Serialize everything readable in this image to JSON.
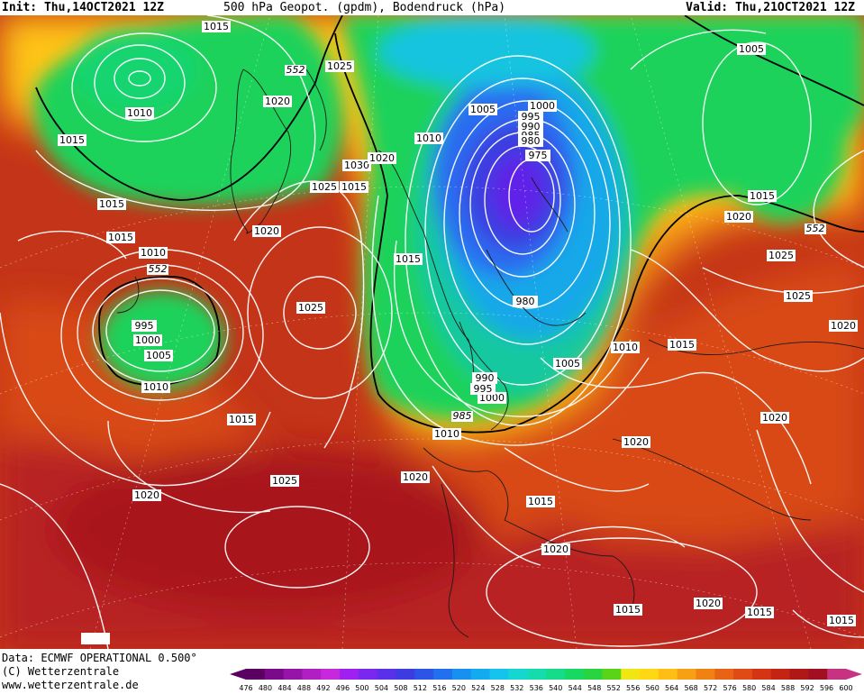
{
  "header": {
    "init": "Init: Thu,14OCT2021 12Z",
    "title": "500 hPa Geopot. (gpdm), Bodendruck (hPa)",
    "valid": "Valid: Thu,21OCT2021 12Z"
  },
  "footer": {
    "data_line": "Data: ECMWF OPERATIONAL 0.500°",
    "copyright": "(C) Wetterzentrale",
    "website": "www.wetterzentrale.de"
  },
  "colorbar": {
    "ticks": [
      "476",
      "480",
      "484",
      "488",
      "492",
      "496",
      "500",
      "504",
      "508",
      "512",
      "516",
      "520",
      "524",
      "528",
      "532",
      "536",
      "540",
      "544",
      "548",
      "552",
      "556",
      "560",
      "564",
      "568",
      "572",
      "576",
      "580",
      "584",
      "588",
      "592",
      "596",
      "600"
    ],
    "colors": [
      "#5a0062",
      "#7a0a8a",
      "#9614a8",
      "#b01ec4",
      "#c828dc",
      "#a020f0",
      "#7a28f0",
      "#5a30e8",
      "#3c3ce0",
      "#2c55e8",
      "#2070f0",
      "#1890f0",
      "#14aaf0",
      "#14c4ec",
      "#14d8d0",
      "#14dcac",
      "#14dc88",
      "#18d864",
      "#28d440",
      "#5ad418",
      "#f0e614",
      "#ffd814",
      "#ffbe14",
      "#f8a014",
      "#f08214",
      "#e86414",
      "#e04a14",
      "#d43414",
      "#c42414",
      "#b01818",
      "#a01020",
      "#c83282"
    ]
  },
  "isobar_labels": {
    "values": [
      "1015",
      "1010",
      "1015",
      "1025",
      "1020",
      "1030",
      "1025",
      "1015",
      "1020",
      "1010",
      "1005",
      "1000",
      "995",
      "990",
      "985",
      "980",
      "975",
      "1005",
      "1015",
      "1020",
      "1025",
      "1025",
      "1020",
      "1015",
      "1010",
      "1015",
      "1020",
      "552",
      "1005",
      "1000",
      "995",
      "1005",
      "1010",
      "1015",
      "1025",
      "1015",
      "1020",
      "1010",
      "1000",
      "995",
      "990",
      "552",
      "1010",
      "1020",
      "1005",
      "1010",
      "1015",
      "1020",
      "1025",
      "1020",
      "1015",
      "1020",
      "1015",
      "1020",
      "1015",
      "1020",
      "1015",
      "980",
      "985",
      "552",
      "552",
      "552",
      "1015"
    ]
  }
}
